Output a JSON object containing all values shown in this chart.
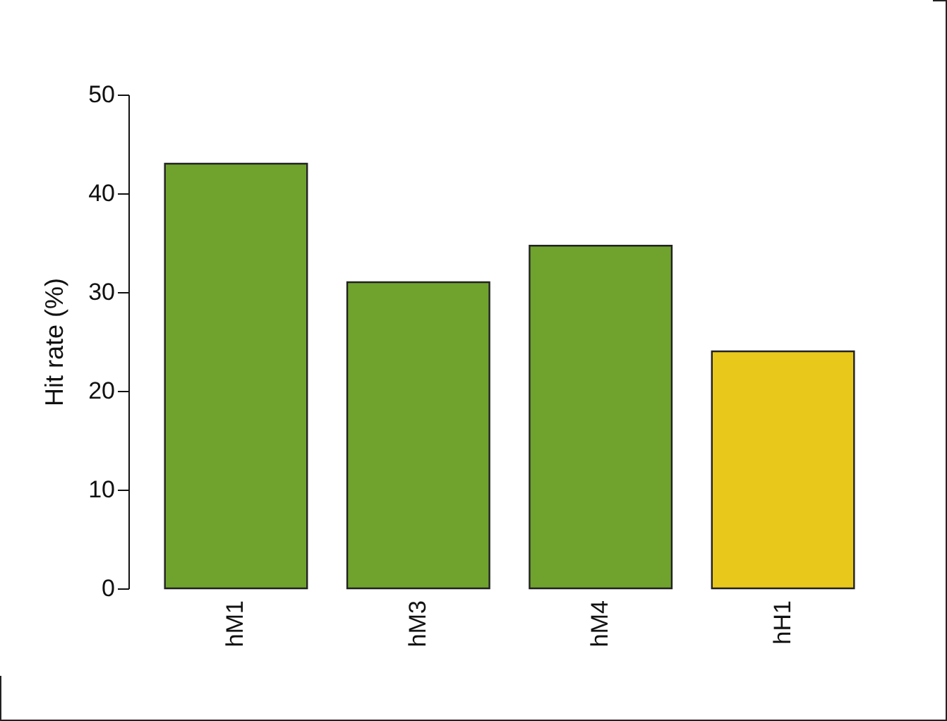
{
  "chart_data": {
    "type": "bar",
    "ylabel": "Hit rate (%)",
    "categories": [
      "hM1",
      "hM3",
      "hM4",
      "hH1"
    ],
    "values": [
      43,
      31,
      34.7,
      24
    ],
    "colors": [
      "#70a32e",
      "#70a32e",
      "#70a32e",
      "#e9c81c"
    ],
    "ylim": [
      0,
      50
    ],
    "yticks": [
      0,
      10,
      20,
      30,
      40,
      50
    ],
    "grid": false,
    "legend": false
  }
}
